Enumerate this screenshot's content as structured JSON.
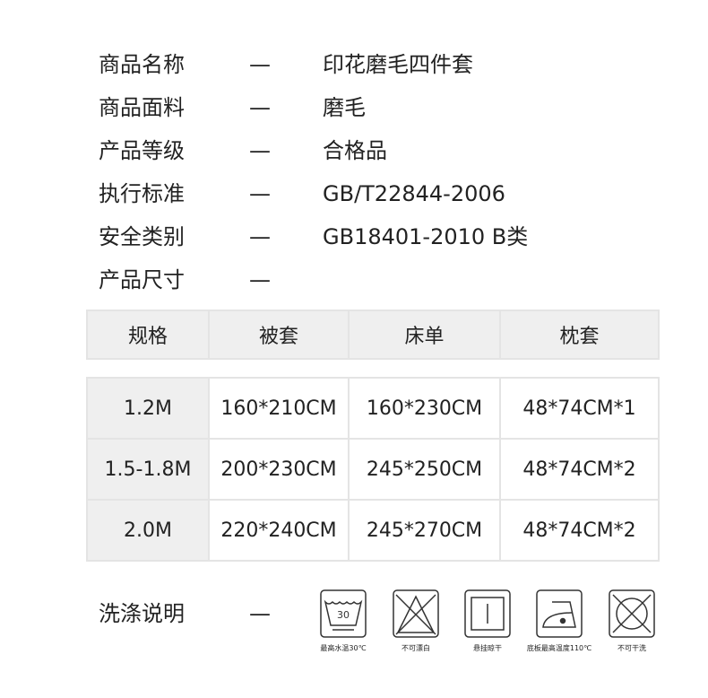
{
  "specs": [
    {
      "label": "商品名称",
      "dash": "—",
      "value": "印花磨毛四件套"
    },
    {
      "label": "商品面料",
      "dash": "—",
      "value": "磨毛"
    },
    {
      "label": "产品等级",
      "dash": "—",
      "value": "合格品"
    },
    {
      "label": "执行标准",
      "dash": "—",
      "value": "GB/T22844-2006"
    },
    {
      "label": "安全类别",
      "dash": "—",
      "value": "GB18401-2010 B类"
    },
    {
      "label": "产品尺寸",
      "dash": "—",
      "value": ""
    }
  ],
  "size_table": {
    "headers": [
      "规格",
      "被套",
      "床单",
      "枕套"
    ],
    "rows": [
      [
        "1.2M",
        "160*210CM",
        "160*230CM",
        "48*74CM*1"
      ],
      [
        "1.5-1.8M",
        "200*230CM",
        "245*250CM",
        "48*74CM*2"
      ],
      [
        "2.0M",
        "220*240CM",
        "245*270CM",
        "48*74CM*2"
      ]
    ]
  },
  "care": {
    "label": "洗涤说明",
    "dash": "—",
    "icons": [
      {
        "icon": "wash-30-icon",
        "number": "30",
        "label": "最高水温30℃"
      },
      {
        "icon": "no-bleach-icon",
        "label": "不可漂白"
      },
      {
        "icon": "hang-dry-icon",
        "label": "悬挂晾干"
      },
      {
        "icon": "iron-110-icon",
        "label": "底板最高温度110℃"
      },
      {
        "icon": "no-dry-clean-icon",
        "label": "不可干洗"
      }
    ]
  }
}
